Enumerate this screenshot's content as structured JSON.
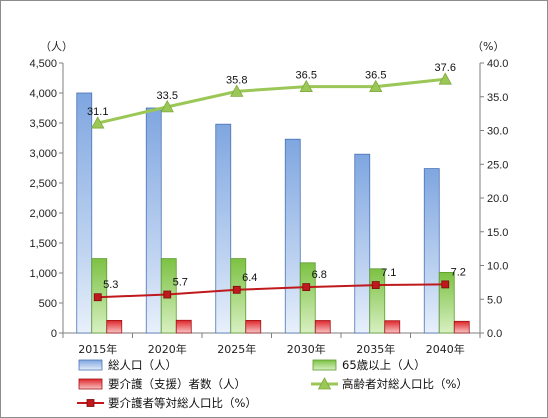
{
  "chart_data": {
    "type": "bar",
    "categories": [
      "2015年",
      "2020年",
      "2025年",
      "2030年",
      "2035年",
      "2040年"
    ],
    "y_left": {
      "unit": "（人）",
      "ylim": [
        0,
        4500
      ],
      "ticks": [
        "0",
        "500",
        "1,000",
        "1,500",
        "2,000",
        "2,500",
        "3,000",
        "3,500",
        "4,000",
        "4,500"
      ]
    },
    "y_right": {
      "unit": "（%）",
      "ylim": [
        0,
        40
      ],
      "ticks": [
        "0.0",
        "5.0",
        "10.0",
        "15.0",
        "20.0",
        "25.0",
        "30.0",
        "35.0",
        "40.0"
      ]
    },
    "series": [
      {
        "name": "総人口（人）",
        "kind": "bar",
        "axis": "left",
        "color": "#8fb2e4",
        "values": [
          4000,
          3750,
          3480,
          3230,
          2980,
          2740
        ]
      },
      {
        "name": "65歳以上（人）",
        "kind": "bar",
        "axis": "left",
        "color": "#92cb5c",
        "values": [
          1240,
          1240,
          1240,
          1170,
          1070,
          1010
        ]
      },
      {
        "name": "要介護（支援）者数（人）",
        "kind": "bar",
        "axis": "left",
        "color": "#e0262b",
        "values": [
          210,
          212,
          210,
          208,
          205,
          195
        ]
      },
      {
        "name": "高齢者対総人口比（%）",
        "kind": "line",
        "axis": "right",
        "color": "#9bc757",
        "marker": "triangle",
        "values": [
          31.1,
          33.5,
          35.8,
          36.5,
          36.5,
          37.6
        ],
        "labels": [
          "31.1",
          "33.5",
          "35.8",
          "36.5",
          "36.5",
          "37.6"
        ]
      },
      {
        "name": "要介護者等対総人口比（%）",
        "kind": "line",
        "axis": "right",
        "color": "#c0191d",
        "marker": "square",
        "values": [
          5.3,
          5.7,
          6.4,
          6.8,
          7.1,
          7.2
        ],
        "labels": [
          "5.3",
          "5.7",
          "6.4",
          "6.8",
          "7.1",
          "7.2"
        ]
      }
    ],
    "grid": false,
    "legend_position": "bottom"
  }
}
